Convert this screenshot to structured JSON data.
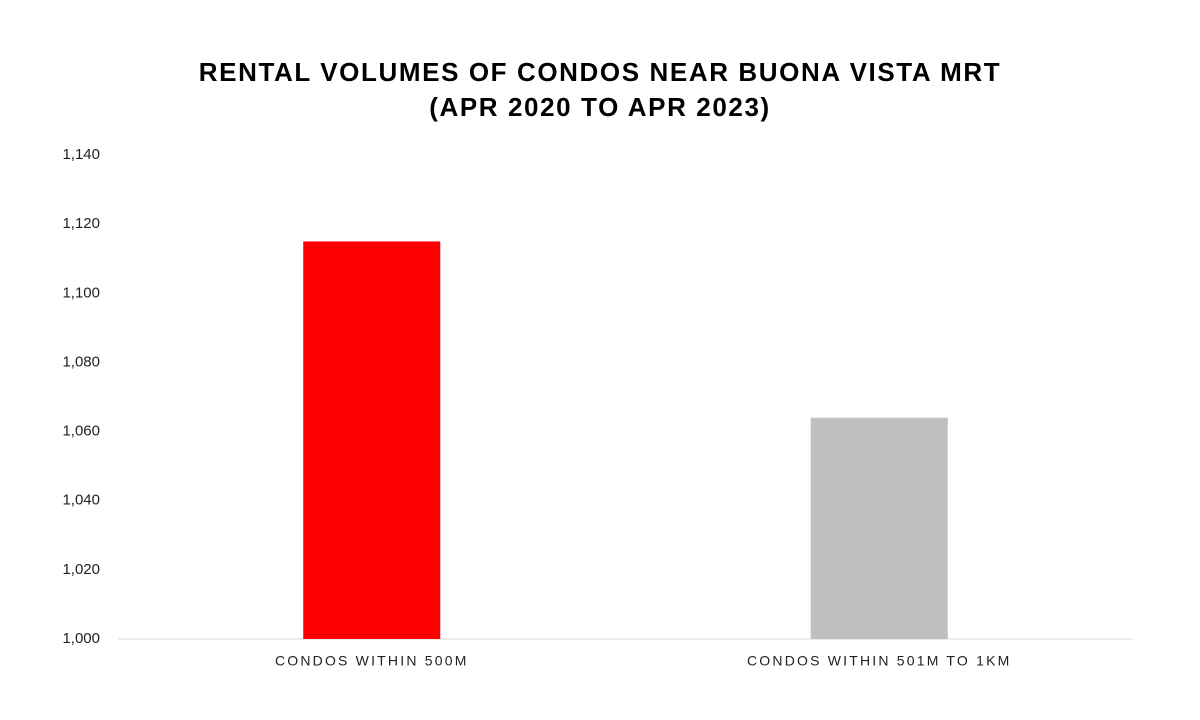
{
  "chart_data": {
    "type": "bar",
    "title": "RENTAL VOLUMES OF CONDOS NEAR BUONA VISTA MRT",
    "subtitle": "(APR 2020 TO APR 2023)",
    "categories": [
      "CONDOS WITHIN 500M",
      "CONDOS WITHIN 501M TO 1KM"
    ],
    "values": [
      1115,
      1064
    ],
    "colors": [
      "#ff0000",
      "#bfbfbf"
    ],
    "ylim": [
      1000,
      1140
    ],
    "yticks": [
      {
        "value": 1000,
        "label": "1,000"
      },
      {
        "value": 1020,
        "label": "1,020"
      },
      {
        "value": 1040,
        "label": "1,040"
      },
      {
        "value": 1060,
        "label": "1,060"
      },
      {
        "value": 1080,
        "label": "1,080"
      },
      {
        "value": 1100,
        "label": "1,100"
      },
      {
        "value": 1120,
        "label": "1,120"
      },
      {
        "value": 1140,
        "label": "1,140"
      }
    ],
    "grid": false
  }
}
